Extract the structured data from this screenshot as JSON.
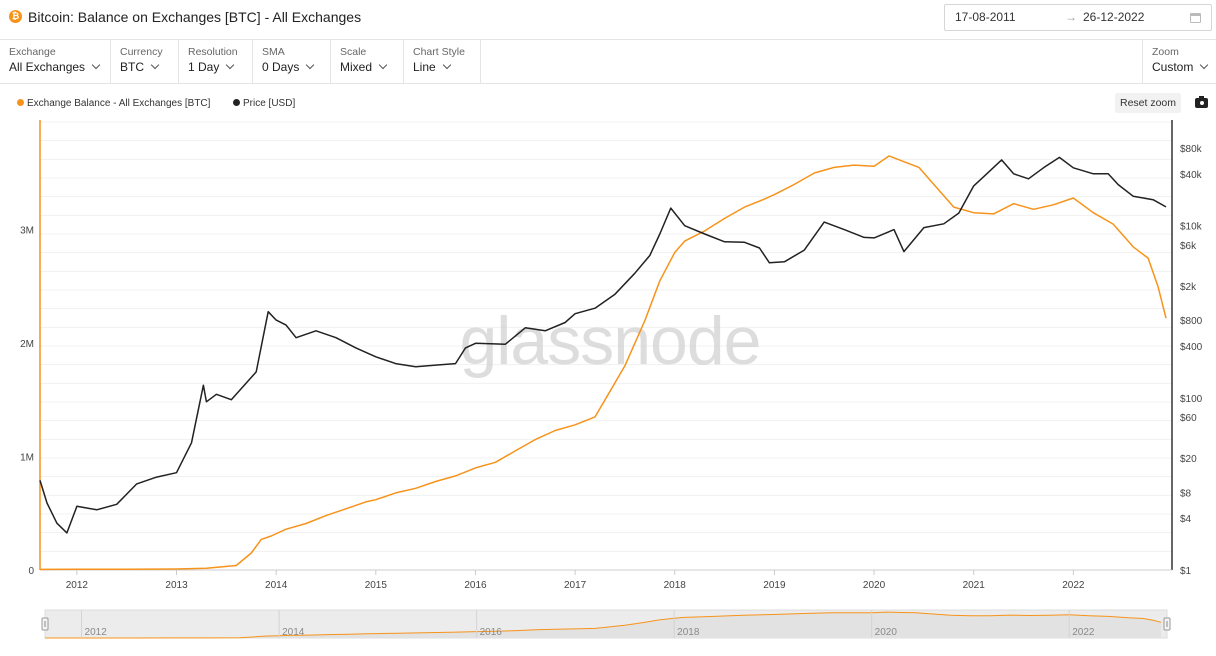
{
  "header": {
    "title": "Bitcoin: Balance on Exchanges [BTC] - All Exchanges",
    "coin_symbol": "₿",
    "date_from": "17-08-2011",
    "date_arrow": "→",
    "date_to": "26-12-2022"
  },
  "controls": [
    {
      "label": "Exchange",
      "value": "All Exchanges"
    },
    {
      "label": "Currency",
      "value": "BTC"
    },
    {
      "label": "Resolution",
      "value": "1 Day"
    },
    {
      "label": "SMA",
      "value": "0 Days"
    },
    {
      "label": "Scale",
      "value": "Mixed"
    },
    {
      "label": "Chart Style",
      "value": "Line"
    }
  ],
  "zoom": {
    "label": "Zoom",
    "value": "Custom"
  },
  "reset_zoom_label": "Reset zoom",
  "watermark": "glassnode",
  "colors": {
    "balance": "#f7931a",
    "price": "#222222"
  },
  "chart_data": {
    "type": "line",
    "legend_position": "top-left",
    "x_range": [
      2011.63,
      2022.99
    ],
    "x_ticks": [
      "2012",
      "2013",
      "2014",
      "2015",
      "2016",
      "2017",
      "2018",
      "2019",
      "2020",
      "2021",
      "2022"
    ],
    "left_axis": {
      "scale": "linear",
      "range": [
        0,
        3950000
      ],
      "ticks": [
        {
          "v": 0,
          "label": "0"
        },
        {
          "v": 1000000,
          "label": "1M"
        },
        {
          "v": 2000000,
          "label": "2M"
        },
        {
          "v": 3000000,
          "label": "3M"
        }
      ]
    },
    "right_axis": {
      "scale": "log",
      "range": [
        1,
        160000
      ],
      "ticks": [
        {
          "v": 1,
          "label": "$1"
        },
        {
          "v": 4,
          "label": "$4"
        },
        {
          "v": 8,
          "label": "$8"
        },
        {
          "v": 20,
          "label": "$20"
        },
        {
          "v": 60,
          "label": "$60"
        },
        {
          "v": 100,
          "label": "$100"
        },
        {
          "v": 400,
          "label": "$400"
        },
        {
          "v": 800,
          "label": "$800"
        },
        {
          "v": 2000,
          "label": "$2k"
        },
        {
          "v": 6000,
          "label": "$6k"
        },
        {
          "v": 10000,
          "label": "$10k"
        },
        {
          "v": 40000,
          "label": "$40k"
        },
        {
          "v": 80000,
          "label": "$80k"
        }
      ]
    },
    "series": [
      {
        "name": "Exchange Balance - All Exchanges [BTC]",
        "axis": "left",
        "x": [
          2011.63,
          2012.0,
          2012.5,
          2013.0,
          2013.3,
          2013.6,
          2013.75,
          2013.85,
          2013.95,
          2014.1,
          2014.3,
          2014.5,
          2014.7,
          2014.9,
          2015.0,
          2015.2,
          2015.4,
          2015.6,
          2015.8,
          2016.0,
          2016.2,
          2016.4,
          2016.6,
          2016.8,
          2017.0,
          2017.2,
          2017.3,
          2017.5,
          2017.7,
          2017.85,
          2018.0,
          2018.1,
          2018.3,
          2018.5,
          2018.7,
          2018.9,
          2019.0,
          2019.2,
          2019.4,
          2019.6,
          2019.8,
          2020.0,
          2020.15,
          2020.3,
          2020.45,
          2020.6,
          2020.8,
          2021.0,
          2021.2,
          2021.4,
          2021.6,
          2021.8,
          2022.0,
          2022.2,
          2022.4,
          2022.6,
          2022.75,
          2022.85,
          2022.93
        ],
        "y": [
          5000,
          6000,
          7000,
          9000,
          15000,
          40000,
          150000,
          270000,
          300000,
          360000,
          410000,
          480000,
          540000,
          600000,
          620000,
          680000,
          720000,
          780000,
          830000,
          900000,
          950000,
          1050000,
          1150000,
          1230000,
          1280000,
          1350000,
          1500000,
          1800000,
          2200000,
          2550000,
          2800000,
          2900000,
          2990000,
          3100000,
          3200000,
          3270000,
          3310000,
          3400000,
          3500000,
          3550000,
          3570000,
          3560000,
          3650000,
          3600000,
          3550000,
          3400000,
          3200000,
          3150000,
          3140000,
          3230000,
          3180000,
          3220000,
          3280000,
          3150000,
          3050000,
          2850000,
          2750000,
          2500000,
          2220000
        ]
      },
      {
        "name": "Price [USD]",
        "axis": "right",
        "x": [
          2011.63,
          2011.7,
          2011.8,
          2011.9,
          2012.0,
          2012.2,
          2012.4,
          2012.6,
          2012.8,
          2013.0,
          2013.15,
          2013.27,
          2013.3,
          2013.4,
          2013.55,
          2013.8,
          2013.92,
          2014.0,
          2014.1,
          2014.2,
          2014.4,
          2014.6,
          2014.8,
          2015.0,
          2015.2,
          2015.4,
          2015.6,
          2015.8,
          2015.9,
          2016.0,
          2016.3,
          2016.5,
          2016.7,
          2016.9,
          2017.0,
          2017.2,
          2017.4,
          2017.6,
          2017.75,
          2017.85,
          2017.96,
          2018.1,
          2018.3,
          2018.5,
          2018.7,
          2018.85,
          2018.95,
          2019.1,
          2019.3,
          2019.5,
          2019.7,
          2019.9,
          2020.0,
          2020.2,
          2020.3,
          2020.5,
          2020.7,
          2020.85,
          2021.0,
          2021.1,
          2021.28,
          2021.4,
          2021.55,
          2021.7,
          2021.86,
          2022.0,
          2022.2,
          2022.35,
          2022.45,
          2022.6,
          2022.8,
          2022.93
        ],
        "y": [
          11,
          6,
          3.5,
          2.7,
          5.5,
          5,
          5.8,
          10,
          12,
          13.5,
          30,
          140,
          90,
          110,
          95,
          200,
          1000,
          800,
          700,
          500,
          600,
          500,
          380,
          300,
          250,
          230,
          240,
          250,
          380,
          430,
          420,
          650,
          600,
          750,
          950,
          1100,
          1600,
          2800,
          4500,
          8000,
          16000,
          10000,
          8000,
          6500,
          6400,
          5500,
          3700,
          3800,
          5200,
          11000,
          9000,
          7300,
          7200,
          9000,
          5000,
          9500,
          10500,
          14000,
          29000,
          37000,
          58000,
          40000,
          35000,
          47000,
          62000,
          47000,
          40000,
          40000,
          30000,
          22000,
          20000,
          16500
        ]
      }
    ]
  }
}
